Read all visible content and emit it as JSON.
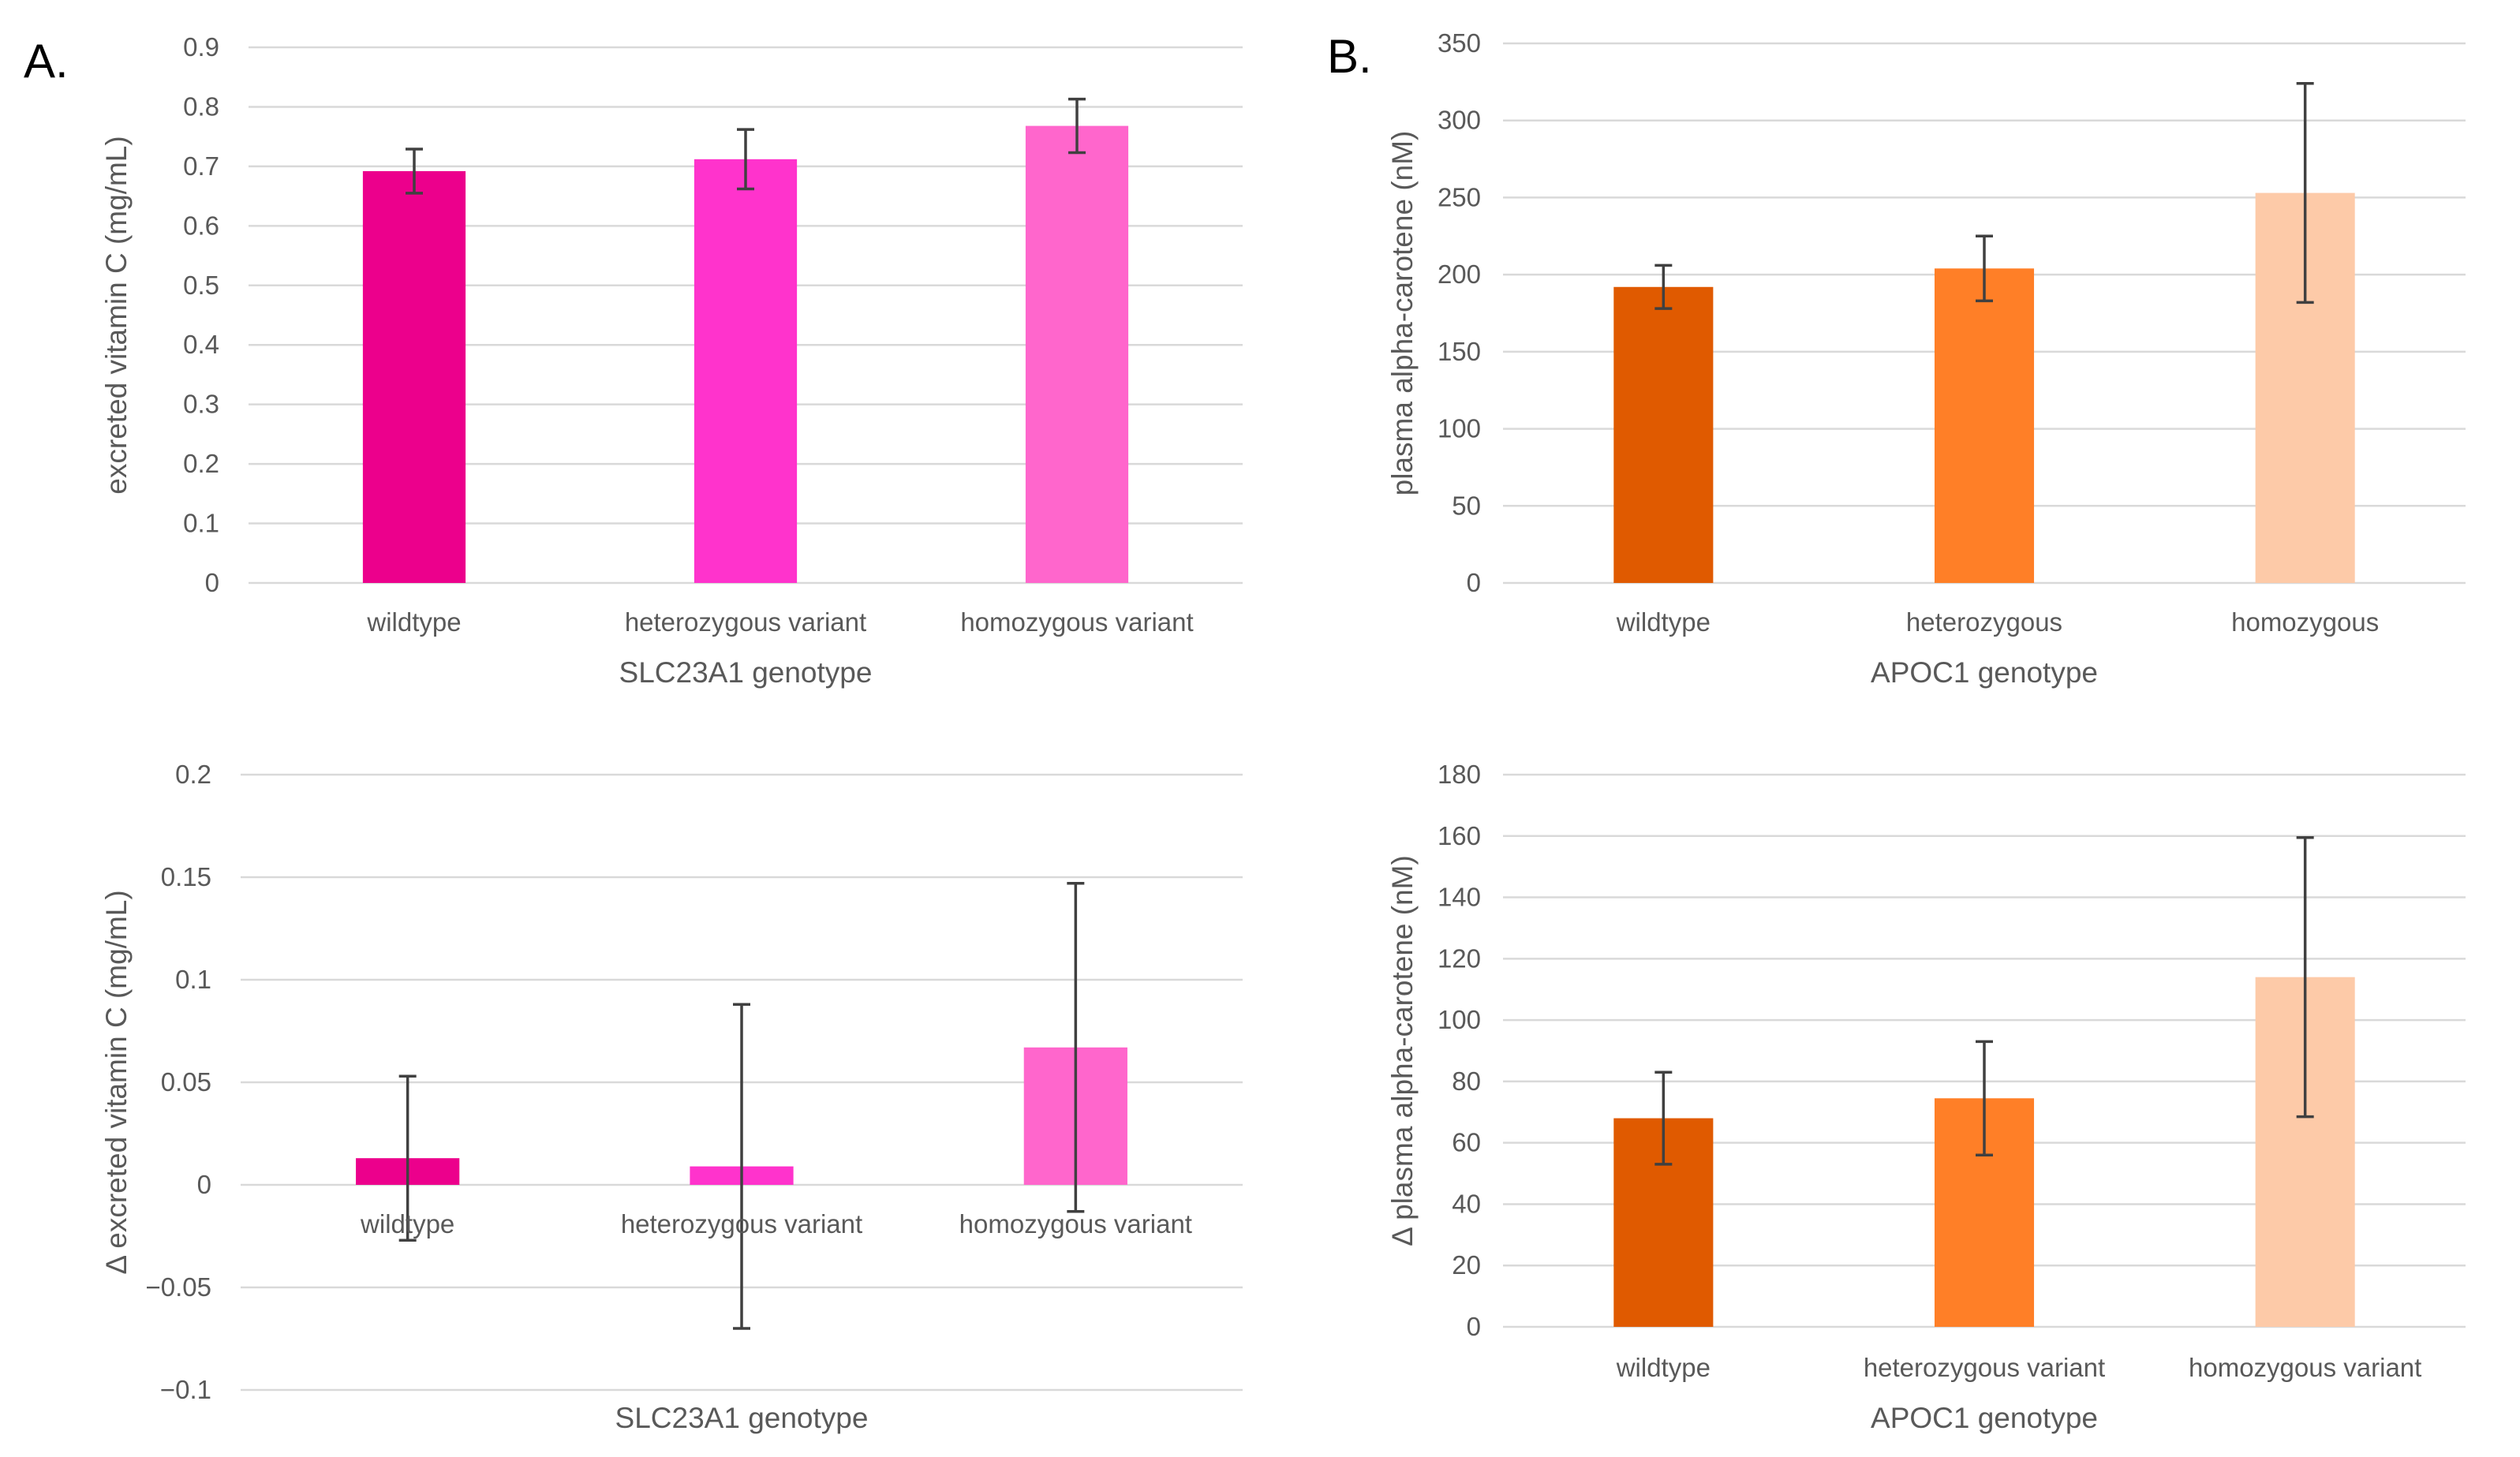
{
  "panels": {
    "a": {
      "label": "A."
    },
    "b": {
      "label": "B."
    }
  },
  "chart_data": [
    {
      "id": "a-top",
      "type": "bar",
      "categories": [
        "wildtype",
        "heterozygous variant",
        "homozygous variant"
      ],
      "values": [
        0.692,
        0.712,
        0.768
      ],
      "errors": [
        0.037,
        0.05,
        0.045
      ],
      "colors": [
        "#ec008c",
        "#ff33cc",
        "#ff66cc"
      ],
      "xlabel": "SLC23A1 genotype",
      "ylabel": "excreted vitamin C (mg/mL)",
      "ylim": [
        0,
        0.9
      ],
      "yticks": [
        "0",
        "0.1",
        "0.2",
        "0.3",
        "0.4",
        "0.5",
        "0.6",
        "0.7",
        "0.8",
        "0.9"
      ],
      "grid": true
    },
    {
      "id": "b-top",
      "type": "bar",
      "categories": [
        "wildtype",
        "heterozygous",
        "homozygous"
      ],
      "values": [
        192,
        204,
        253
      ],
      "errors": [
        14,
        21,
        71
      ],
      "colors": [
        "#e05a00",
        "#ff7f27",
        "#fdcaa8"
      ],
      "xlabel": "APOC1 genotype",
      "ylabel": "plasma alpha-carotene (nM)",
      "ylim": [
        0,
        350
      ],
      "yticks": [
        "0",
        "50",
        "100",
        "150",
        "200",
        "250",
        "300",
        "350"
      ],
      "grid": true
    },
    {
      "id": "a-bottom",
      "type": "bar",
      "categories": [
        "wildtype",
        "heterozygous variant",
        "homozygous variant"
      ],
      "values": [
        0.013,
        0.009,
        0.067
      ],
      "errors": [
        0.04,
        0.079,
        0.08
      ],
      "colors": [
        "#ec008c",
        "#ff33cc",
        "#ff66cc"
      ],
      "xlabel": "SLC23A1 genotype",
      "ylabel": "Δ excreted vitamin C (mg/mL)",
      "ylim": [
        -0.1,
        0.2
      ],
      "yticks": [
        "−0.1",
        "−0.05",
        "0",
        "0.05",
        "0.1",
        "0.15",
        "0.2"
      ],
      "grid": true
    },
    {
      "id": "b-bottom",
      "type": "bar",
      "categories": [
        "wildtype",
        "heterozygous variant",
        "homozygous variant"
      ],
      "values": [
        68,
        74.5,
        114
      ],
      "errors": [
        15,
        18.5,
        45.5
      ],
      "colors": [
        "#e05a00",
        "#ff7f27",
        "#fdcaa8"
      ],
      "xlabel": "APOC1 genotype",
      "ylabel": "Δ plasma alpha-carotene (nM)",
      "ylim": [
        0,
        180
      ],
      "yticks": [
        "0",
        "20",
        "40",
        "60",
        "80",
        "100",
        "120",
        "140",
        "160",
        "180"
      ],
      "grid": true
    }
  ]
}
